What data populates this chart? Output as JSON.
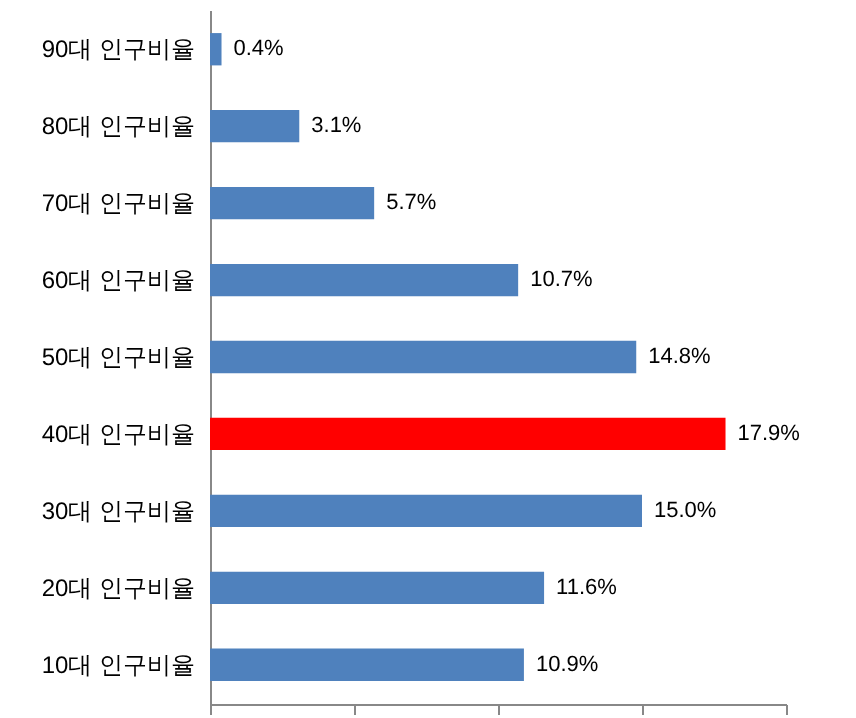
{
  "chart_data": {
    "type": "bar",
    "orientation": "horizontal",
    "categories": [
      "90대 인구비율",
      "80대 인구비율",
      "70대 인구비율",
      "60대 인구비율",
      "50대 인구비율",
      "40대 인구비율",
      "30대 인구비율",
      "20대 인구비율",
      "10대 인구비율"
    ],
    "values": [
      0.4,
      3.1,
      5.7,
      10.7,
      14.8,
      17.9,
      15.0,
      11.6,
      10.9
    ],
    "colors": [
      "#4f81bd",
      "#4f81bd",
      "#4f81bd",
      "#4f81bd",
      "#4f81bd",
      "#ff0000",
      "#4f81bd",
      "#4f81bd",
      "#4f81bd"
    ],
    "value_labels": [
      "0.4%",
      "3.1%",
      "5.7%",
      "10.7%",
      "14.8%",
      "17.9%",
      "15.0%",
      "11.6%",
      "10.9%"
    ],
    "xlim": [
      0,
      20
    ],
    "xticks": [
      {
        "value": 0,
        "label": null
      },
      {
        "value": 5,
        "label": null
      },
      {
        "value": 10,
        "label": null
      },
      {
        "value": 15,
        "label": null
      },
      {
        "value": 20,
        "label": null
      }
    ],
    "tick_labels": "y",
    "grid": false
  }
}
